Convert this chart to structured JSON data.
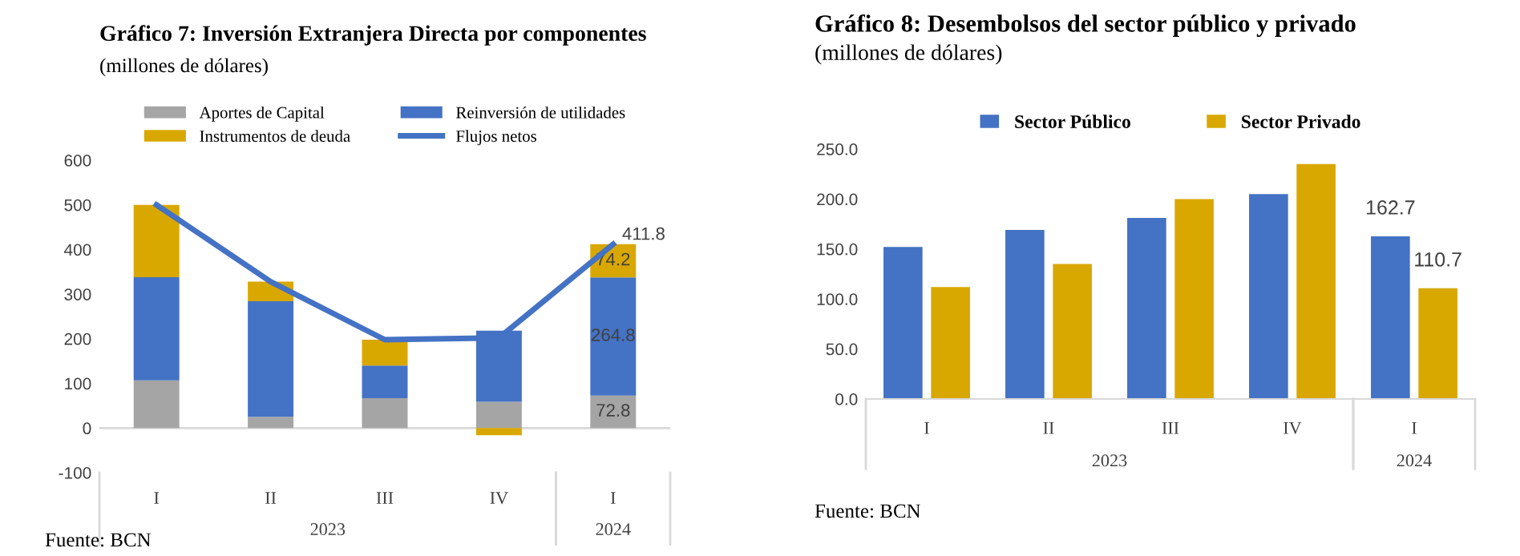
{
  "chart_data": [
    {
      "type": "bar",
      "stacked": true,
      "title": "Gráfico 7: Inversión Extranjera Directa por componentes",
      "subtitle": "(millones de dólares)",
      "categories": [
        "I",
        "II",
        "III",
        "IV",
        "I"
      ],
      "series": [
        {
          "name": "Aportes de Capital",
          "color": "#a5a5a5",
          "values": [
            107,
            25,
            67,
            59,
            72.8
          ],
          "value_labels": [
            null,
            null,
            null,
            null,
            "72.8"
          ]
        },
        {
          "name": "Reinversión de utilidades",
          "color": "#4472c4",
          "values": [
            231,
            259,
            73,
            159,
            264.8
          ],
          "value_labels": [
            null,
            null,
            null,
            null,
            "264.8"
          ]
        },
        {
          "name": "Instrumentos de deuda",
          "color": "#d9a800",
          "values": [
            162,
            44,
            58,
            -16,
            74.2
          ],
          "value_labels": [
            null,
            null,
            null,
            null,
            "74.2"
          ]
        },
        {
          "name": "Flujos netos",
          "type": "line",
          "color": "#4472c4",
          "values": [
            500,
            328,
            198,
            202,
            411.8
          ],
          "value_labels": [
            null,
            null,
            null,
            null,
            "411.8"
          ]
        }
      ],
      "ref_lines": [
        {
          "axis": "y",
          "value": 0,
          "color": "#d9d9d9"
        }
      ],
      "ylim": [
        -100,
        600
      ],
      "yticks": [
        -100,
        0,
        100,
        200,
        300,
        400,
        500,
        600
      ],
      "grid": false,
      "legend": "top",
      "marker": "none",
      "annotations": [
        "2023",
        "2024",
        "Fuente: BCN"
      ]
    },
    {
      "type": "bar",
      "title": "Gráfico 8: Desembolsos del sector público y privado",
      "subtitle": "(millones de dólares)",
      "categories": [
        "I",
        "II",
        "III",
        "IV",
        "I"
      ],
      "series": [
        {
          "name": "Sector Público",
          "color": "#4472c4",
          "values": [
            152,
            169,
            181,
            205,
            162.7
          ],
          "value_labels": [
            null,
            null,
            null,
            null,
            "162.7"
          ]
        },
        {
          "name": "Sector Privado",
          "color": "#d9a800",
          "values": [
            112,
            135,
            200,
            235,
            110.7
          ],
          "value_labels": [
            null,
            null,
            null,
            null,
            "110.7"
          ]
        }
      ],
      "ylim": [
        0,
        250
      ],
      "yticks": [
        {
          "value": 0,
          "label": "0.0"
        },
        {
          "value": 50,
          "label": "50.0"
        },
        {
          "value": 100,
          "label": "100.0"
        },
        {
          "value": 150,
          "label": "150.0"
        },
        {
          "value": 200,
          "label": "200.0"
        },
        {
          "value": 250,
          "label": "250.0"
        }
      ],
      "grid": false,
      "legend": "top",
      "annotations": [
        "2023",
        "2024",
        "Fuente: BCN"
      ]
    }
  ]
}
